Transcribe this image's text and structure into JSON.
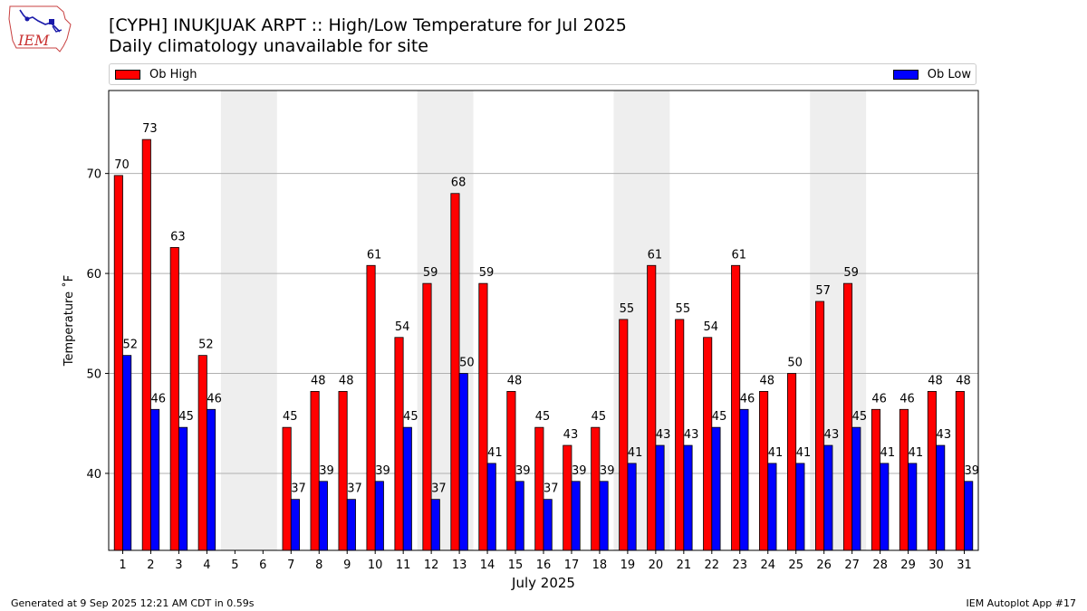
{
  "header": {
    "title": "[CYPH] INUKJUAK ARPT :: High/Low Temperature for Jul 2025",
    "subtitle": "Daily climatology unavailable for site",
    "logo_text": "IEM"
  },
  "footer": {
    "generated": "Generated at 9 Sep 2025 12:21 AM CDT in 0.59s",
    "app": "IEM Autoplot App #17"
  },
  "colors": {
    "high": "#ff0000",
    "low": "#0000ff",
    "weekend_band": "#eeeeee",
    "grid": "#b0b0b0"
  },
  "chart_data": {
    "type": "bar",
    "xlabel": "July 2025",
    "ylabel": "Temperature ˚F",
    "ylim": [
      32.3,
      78.3
    ],
    "yticks": [
      40,
      50,
      60,
      70
    ],
    "grid": "horizontal",
    "legend_placement": "top, spanning",
    "categories": [
      "1",
      "2",
      "3",
      "4",
      "5",
      "6",
      "7",
      "8",
      "9",
      "10",
      "11",
      "12",
      "13",
      "14",
      "15",
      "16",
      "17",
      "18",
      "19",
      "20",
      "21",
      "22",
      "23",
      "24",
      "25",
      "26",
      "27",
      "28",
      "29",
      "30",
      "31"
    ],
    "weekend_days": [
      [
        5,
        6
      ],
      [
        12,
        13
      ],
      [
        19,
        20
      ],
      [
        26,
        27
      ]
    ],
    "series": [
      {
        "name": "Ob High",
        "values": [
          69.8,
          73.4,
          62.6,
          51.8,
          null,
          null,
          44.6,
          48.2,
          48.2,
          60.8,
          53.6,
          59.0,
          68.0,
          59.0,
          48.2,
          44.6,
          42.8,
          44.6,
          55.4,
          60.8,
          55.4,
          53.6,
          60.8,
          48.2,
          50.0,
          57.2,
          59.0,
          46.4,
          46.4,
          48.2,
          48.2
        ],
        "labels": [
          "70",
          "73",
          "63",
          "52",
          "",
          "",
          "45",
          "48",
          "48",
          "61",
          "54",
          "59",
          "68",
          "59",
          "48",
          "45",
          "43",
          "45",
          "55",
          "61",
          "55",
          "54",
          "61",
          "48",
          "50",
          "57",
          "59",
          "46",
          "46",
          "48",
          "48"
        ]
      },
      {
        "name": "Ob Low",
        "values": [
          51.8,
          46.4,
          44.6,
          46.4,
          null,
          null,
          37.4,
          39.2,
          37.4,
          39.2,
          44.6,
          37.4,
          50.0,
          41.0,
          39.2,
          37.4,
          39.2,
          39.2,
          41.0,
          42.8,
          42.8,
          44.6,
          46.4,
          41.0,
          41.0,
          42.8,
          44.6,
          41.0,
          41.0,
          42.8,
          39.2
        ],
        "labels": [
          "52",
          "46",
          "45",
          "46",
          "",
          "",
          "37",
          "39",
          "37",
          "39",
          "45",
          "37",
          "50",
          "41",
          "39",
          "37",
          "39",
          "39",
          "41",
          "43",
          "43",
          "45",
          "46",
          "41",
          "41",
          "43",
          "45",
          "41",
          "41",
          "43",
          "39"
        ]
      }
    ]
  }
}
